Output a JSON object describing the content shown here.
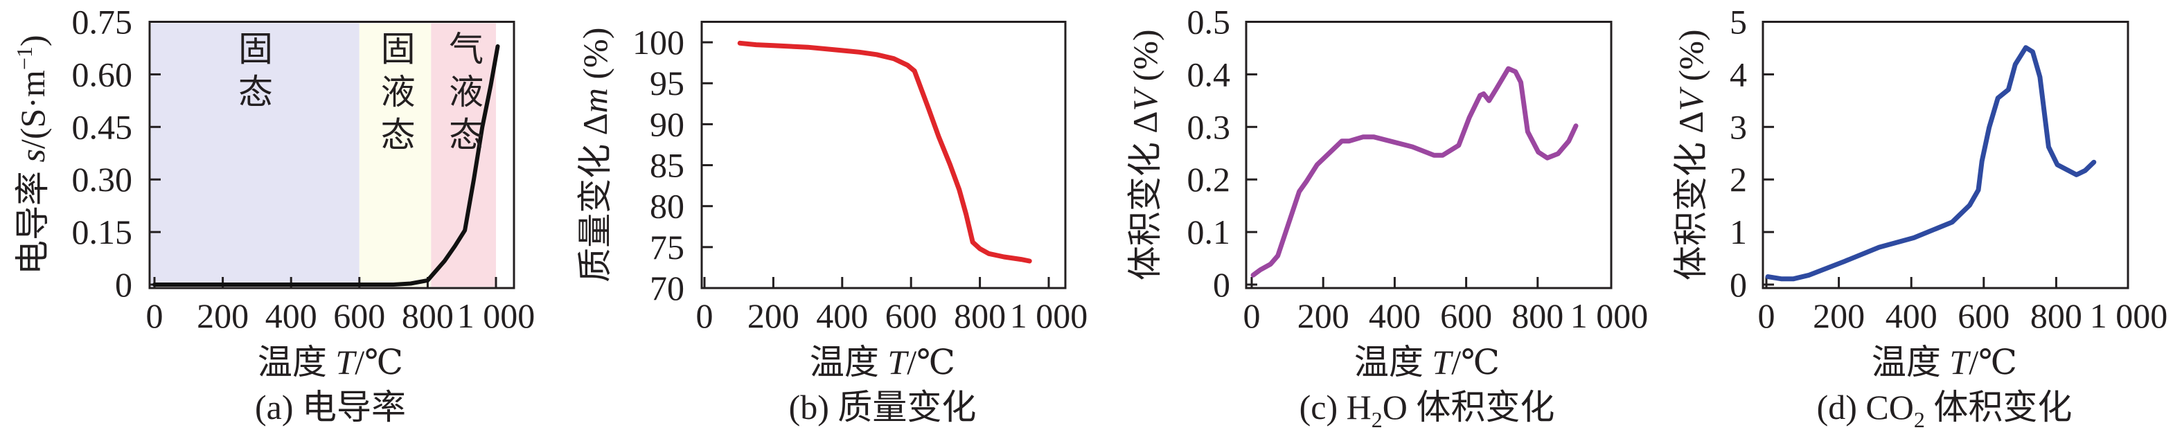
{
  "chart_data": [
    {
      "id": "a",
      "type": "line",
      "caption": {
        "text": "(a) 电导率"
      },
      "xlabel": {
        "prefix": "温度 ",
        "var": "T",
        "suffix": "/℃"
      },
      "ylabel": {
        "prefix": "电导率 ",
        "var": "s",
        "suffix": "/(S·m",
        "sup": "−1",
        "end": ")"
      },
      "xlim": [
        0,
        1000
      ],
      "ylim": [
        0,
        0.75
      ],
      "xticks": [
        0,
        200,
        400,
        600,
        800,
        1000
      ],
      "xtick_labels": [
        "0",
        "200",
        "400",
        "600",
        "800",
        "1 000"
      ],
      "yticks": [
        0,
        0.15,
        0.3,
        0.45,
        0.6,
        0.75
      ],
      "ytick_labels": [
        "0",
        "0.15",
        "0.30",
        "0.45",
        "0.60",
        "0.75"
      ],
      "regions": [
        {
          "label": "固态",
          "range": [
            0,
            600
          ],
          "color": "#e4e4f4"
        },
        {
          "label": "固液态",
          "range": [
            600,
            810
          ],
          "color": "#fdfdec"
        },
        {
          "label": "气液态",
          "range": [
            810,
            1000
          ],
          "color": "#fadde3"
        }
      ],
      "series": [
        {
          "name": "电导率",
          "color": "#111111",
          "x": [
            0,
            100,
            200,
            300,
            400,
            500,
            600,
            700,
            750,
            800,
            850,
            880,
            909,
            935,
            960,
            985,
            1005
          ],
          "y": [
            0,
            0,
            0,
            0,
            0,
            0,
            0,
            0,
            0.003,
            0.012,
            0.068,
            0.11,
            0.155,
            0.3,
            0.45,
            0.57,
            0.68
          ]
        }
      ]
    },
    {
      "id": "b",
      "type": "line",
      "caption": {
        "text": "(b) 质量变化"
      },
      "xlabel": {
        "prefix": "温度 ",
        "var": "T",
        "suffix": "/℃"
      },
      "ylabel": {
        "prefix": "质量变化 Δ",
        "var": "m",
        "suffix": " (%)"
      },
      "xlim": [
        0,
        1000
      ],
      "ylim": [
        70,
        102.5
      ],
      "xticks": [
        0,
        200,
        400,
        600,
        800,
        1000
      ],
      "xtick_labels": [
        "0",
        "200",
        "400",
        "600",
        "800",
        "1 000"
      ],
      "yticks": [
        70,
        75,
        80,
        85,
        90,
        95,
        100
      ],
      "ytick_labels": [
        "70",
        "75",
        "80",
        "85",
        "90",
        "95",
        "100"
      ],
      "series": [
        {
          "name": "质量变化",
          "color": "#e0262a",
          "x": [
            103,
            150,
            200,
            300,
            400,
            450,
            500,
            550,
            590,
            610,
            651,
            680,
            713,
            740,
            760,
            779,
            800,
            826,
            870,
            920,
            944
          ],
          "y": [
            99.9,
            99.7,
            99.6,
            99.4,
            99.0,
            98.8,
            98.5,
            98.0,
            97.2,
            96.5,
            91.9,
            88.5,
            85.1,
            82.0,
            79.0,
            75.6,
            74.8,
            74.2,
            73.8,
            73.5,
            73.3
          ]
        }
      ]
    },
    {
      "id": "c",
      "type": "line",
      "caption": {
        "prefix": "(c) H",
        "sub": "2",
        "suffix": "O 体积变化"
      },
      "xlabel": {
        "prefix": "温度 ",
        "var": "T",
        "suffix": "/℃"
      },
      "ylabel": {
        "prefix": "体积变化 Δ",
        "var": "V",
        "suffix": " (%)"
      },
      "xlim": [
        0,
        1000
      ],
      "ylim": [
        0,
        0.5
      ],
      "xticks": [
        0,
        200,
        400,
        600,
        800,
        1000
      ],
      "xtick_labels": [
        "0",
        "200",
        "400",
        "600",
        "800",
        "1 000"
      ],
      "yticks": [
        0,
        0.1,
        0.2,
        0.3,
        0.4,
        0.5
      ],
      "ytick_labels": [
        "0",
        "0.1",
        "0.2",
        "0.3",
        "0.4",
        "0.5"
      ],
      "series": [
        {
          "name": "H2O 体积变化",
          "color": "#9b47a0",
          "x": [
            4,
            24,
            53,
            73,
            133,
            153,
            183,
            252,
            272,
            312,
            341,
            450,
            510,
            534,
            579,
            609,
            639,
            649,
            664,
            684,
            718,
            738,
            753,
            772,
            802,
            827,
            857,
            887,
            907
          ],
          "y": [
            0.018,
            0.028,
            0.039,
            0.055,
            0.177,
            0.196,
            0.228,
            0.273,
            0.273,
            0.281,
            0.281,
            0.262,
            0.246,
            0.246,
            0.265,
            0.318,
            0.36,
            0.363,
            0.35,
            0.372,
            0.411,
            0.405,
            0.385,
            0.291,
            0.252,
            0.241,
            0.249,
            0.273,
            0.302
          ]
        }
      ]
    },
    {
      "id": "d",
      "type": "line",
      "caption": {
        "prefix": "(d) CO",
        "sub": "2",
        "suffix": " 体积变化"
      },
      "xlabel": {
        "prefix": "温度 ",
        "var": "T",
        "suffix": "/℃"
      },
      "ylabel": {
        "prefix": "体积变化 Δ",
        "var": "V",
        "suffix": " (%)"
      },
      "xlim": [
        0,
        1000
      ],
      "ylim": [
        0,
        5
      ],
      "xticks": [
        0,
        200,
        400,
        600,
        800,
        1000
      ],
      "xtick_labels": [
        "0",
        "200",
        "400",
        "600",
        "800",
        "1 000"
      ],
      "yticks": [
        0,
        1,
        2,
        3,
        4,
        5
      ],
      "ytick_labels": [
        "0",
        "1",
        "2",
        "3",
        "4",
        "5"
      ],
      "series": [
        {
          "name": "CO2 体积变化",
          "color": "#2e4aa0",
          "x": [
            4,
            41,
            75,
            118,
            215,
            311,
            407,
            513,
            561,
            585,
            595,
            615,
            639,
            668,
            687,
            716,
            735,
            755,
            779,
            803,
            856,
            880,
            904
          ],
          "y": [
            0.15,
            0.11,
            0.11,
            0.18,
            0.44,
            0.71,
            0.89,
            1.19,
            1.51,
            1.8,
            2.35,
            2.99,
            3.55,
            3.71,
            4.19,
            4.51,
            4.43,
            3.95,
            2.62,
            2.28,
            2.09,
            2.17,
            2.33
          ]
        }
      ]
    }
  ]
}
